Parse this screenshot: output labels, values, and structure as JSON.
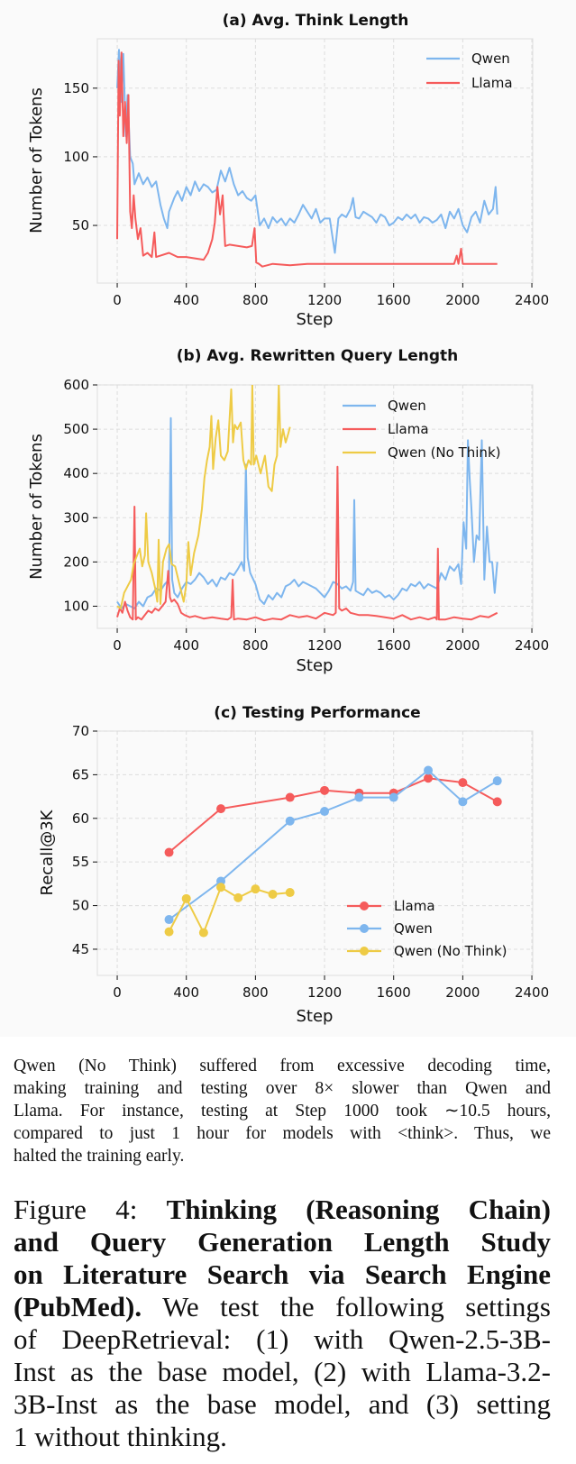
{
  "colors": {
    "qwen": "#7eb6ee",
    "llama": "#f55b5b",
    "qwen_no_think": "#eecb45",
    "grid": "#dddddd",
    "frame": "#e2e2e2"
  },
  "chart_data": [
    {
      "type": "line",
      "title": "(a) Avg. Think Length",
      "xlabel": "Step",
      "ylabel": "Number of Tokens",
      "xlim": [
        -115,
        2405
      ],
      "ylim": [
        8,
        186
      ],
      "xticks": [
        0,
        400,
        800,
        1200,
        1600,
        2000,
        2400
      ],
      "yticks": [
        50,
        100,
        150
      ],
      "grid": true,
      "legend": "top-right",
      "series": [
        {
          "name": "Qwen",
          "color_key": "qwen",
          "x": [
            0,
            10,
            25,
            35,
            50,
            60,
            75,
            90,
            100,
            125,
            150,
            175,
            200,
            225,
            250,
            270,
            290,
            300,
            330,
            350,
            375,
            400,
            425,
            450,
            475,
            500,
            525,
            550,
            575,
            600,
            625,
            650,
            675,
            700,
            725,
            750,
            775,
            800,
            825,
            850,
            875,
            900,
            925,
            950,
            975,
            1000,
            1025,
            1050,
            1075,
            1100,
            1125,
            1150,
            1175,
            1200,
            1230,
            1260,
            1280,
            1300,
            1325,
            1350,
            1365,
            1380,
            1400,
            1425,
            1450,
            1475,
            1500,
            1525,
            1550,
            1575,
            1600,
            1625,
            1650,
            1675,
            1700,
            1725,
            1750,
            1775,
            1800,
            1825,
            1850,
            1875,
            1900,
            1925,
            1950,
            1975,
            2000,
            2025,
            2050,
            2075,
            2100,
            2125,
            2150,
            2175,
            2190,
            2200
          ],
          "y": [
            150,
            178,
            140,
            175,
            115,
            145,
            100,
            95,
            80,
            88,
            80,
            85,
            78,
            82,
            65,
            55,
            48,
            60,
            70,
            75,
            68,
            78,
            72,
            82,
            75,
            80,
            78,
            74,
            76,
            90,
            82,
            92,
            80,
            72,
            75,
            70,
            68,
            72,
            50,
            55,
            48,
            56,
            52,
            55,
            50,
            55,
            52,
            58,
            65,
            60,
            55,
            62,
            52,
            55,
            55,
            30,
            55,
            58,
            56,
            62,
            70,
            56,
            55,
            60,
            58,
            56,
            52,
            58,
            56,
            50,
            52,
            56,
            54,
            58,
            55,
            58,
            52,
            56,
            55,
            52,
            54,
            58,
            48,
            60,
            55,
            62,
            50,
            45,
            56,
            60,
            52,
            68,
            58,
            62,
            78,
            58
          ]
        },
        {
          "name": "Llama",
          "color_key": "llama",
          "x": [
            0,
            8,
            15,
            25,
            35,
            45,
            55,
            65,
            75,
            85,
            95,
            105,
            120,
            135,
            150,
            175,
            200,
            215,
            225,
            250,
            300,
            350,
            400,
            450,
            500,
            525,
            550,
            565,
            580,
            595,
            610,
            625,
            650,
            700,
            750,
            780,
            795,
            805,
            820,
            840,
            870,
            900,
            1000,
            1100,
            1200,
            1400,
            1600,
            1800,
            1950,
            1965,
            1975,
            1990,
            2000,
            2100,
            2200
          ],
          "y": [
            40,
            170,
            130,
            176,
            115,
            140,
            110,
            145,
            60,
            48,
            72,
            55,
            40,
            48,
            28,
            30,
            27,
            45,
            27,
            28,
            30,
            27,
            27,
            26,
            25,
            30,
            40,
            52,
            78,
            58,
            72,
            35,
            36,
            35,
            34,
            35,
            48,
            23,
            22,
            20,
            21,
            22,
            21,
            22,
            22,
            22,
            22,
            22,
            22,
            28,
            22,
            33,
            22,
            22,
            22
          ]
        }
      ]
    },
    {
      "type": "line",
      "title": "(b) Avg. Rewritten Query Length",
      "xlabel": "Step",
      "ylabel": "Number of Tokens",
      "xlim": [
        -115,
        2405
      ],
      "ylim": [
        50,
        600
      ],
      "xticks": [
        0,
        400,
        800,
        1200,
        1600,
        2000,
        2400
      ],
      "yticks": [
        100,
        200,
        300,
        400,
        500,
        600
      ],
      "grid": true,
      "legend": "top-right",
      "series": [
        {
          "name": "Qwen",
          "color_key": "qwen",
          "x": [
            0,
            25,
            50,
            75,
            100,
            125,
            150,
            175,
            200,
            225,
            250,
            275,
            300,
            310,
            318,
            330,
            350,
            375,
            400,
            425,
            450,
            475,
            500,
            525,
            550,
            575,
            600,
            625,
            650,
            675,
            700,
            720,
            735,
            745,
            755,
            770,
            800,
            825,
            850,
            875,
            900,
            925,
            950,
            975,
            1000,
            1025,
            1050,
            1075,
            1100,
            1125,
            1150,
            1175,
            1200,
            1225,
            1250,
            1275,
            1300,
            1325,
            1350,
            1365,
            1372,
            1380,
            1400,
            1425,
            1450,
            1475,
            1500,
            1525,
            1550,
            1575,
            1600,
            1625,
            1650,
            1675,
            1700,
            1725,
            1750,
            1775,
            1800,
            1825,
            1850,
            1875,
            1900,
            1925,
            1950,
            1975,
            1990,
            2005,
            2020,
            2030,
            2040,
            2050,
            2065,
            2080,
            2095,
            2110,
            2125,
            2140,
            2155,
            2170,
            2185,
            2200
          ],
          "y": [
            110,
            95,
            105,
            100,
            95,
            110,
            100,
            120,
            125,
            140,
            135,
            150,
            160,
            525,
            160,
            130,
            120,
            140,
            155,
            150,
            160,
            175,
            165,
            150,
            160,
            145,
            165,
            160,
            175,
            170,
            185,
            200,
            180,
            420,
            210,
            175,
            150,
            115,
            105,
            125,
            115,
            130,
            120,
            145,
            150,
            160,
            145,
            155,
            150,
            145,
            140,
            130,
            120,
            135,
            155,
            150,
            140,
            145,
            135,
            155,
            340,
            135,
            130,
            125,
            140,
            130,
            135,
            130,
            120,
            125,
            115,
            125,
            140,
            135,
            150,
            145,
            155,
            140,
            150,
            145,
            140,
            175,
            160,
            190,
            180,
            195,
            150,
            290,
            230,
            475,
            390,
            320,
            200,
            260,
            250,
            475,
            160,
            280,
            200,
            200,
            130,
            200
          ]
        },
        {
          "name": "Llama",
          "color_key": "llama",
          "x": [
            0,
            15,
            30,
            45,
            60,
            75,
            90,
            100,
            108,
            120,
            140,
            160,
            180,
            200,
            220,
            240,
            260,
            280,
            295,
            305,
            315,
            330,
            350,
            370,
            390,
            420,
            450,
            500,
            550,
            600,
            640,
            660,
            668,
            676,
            700,
            750,
            800,
            850,
            900,
            950,
            1000,
            1050,
            1100,
            1150,
            1200,
            1250,
            1265,
            1275,
            1285,
            1300,
            1325,
            1350,
            1400,
            1450,
            1500,
            1550,
            1600,
            1650,
            1700,
            1750,
            1800,
            1840,
            1850,
            1856,
            1862,
            1900,
            1950,
            2000,
            2050,
            2100,
            2150,
            2200
          ],
          "y": [
            75,
            95,
            85,
            110,
            90,
            75,
            70,
            325,
            70,
            75,
            70,
            80,
            90,
            85,
            95,
            90,
            100,
            110,
            180,
            120,
            110,
            115,
            105,
            85,
            80,
            75,
            78,
            72,
            75,
            72,
            70,
            75,
            160,
            70,
            72,
            70,
            75,
            68,
            72,
            70,
            80,
            75,
            78,
            72,
            85,
            80,
            85,
            415,
            95,
            90,
            95,
            85,
            80,
            80,
            78,
            75,
            72,
            80,
            70,
            75,
            70,
            75,
            70,
            230,
            70,
            70,
            75,
            72,
            70,
            78,
            75,
            85
          ]
        },
        {
          "name": "Qwen (No Think)",
          "color_key": "qwen_no_think",
          "x": [
            0,
            20,
            40,
            60,
            80,
            95,
            110,
            130,
            145,
            160,
            167,
            180,
            200,
            220,
            232,
            240,
            250,
            265,
            285,
            300,
            315,
            335,
            360,
            385,
            400,
            412,
            425,
            445,
            470,
            490,
            505,
            520,
            535,
            545,
            555,
            570,
            585,
            600,
            620,
            640,
            660,
            670,
            680,
            695,
            715,
            730,
            745,
            760,
            775,
            782,
            790,
            805,
            830,
            855,
            875,
            895,
            910,
            925,
            935,
            945,
            960,
            975,
            990,
            1000
          ],
          "y": [
            100,
            95,
            130,
            145,
            160,
            195,
            210,
            230,
            190,
            215,
            310,
            200,
            175,
            140,
            110,
            250,
            105,
            200,
            230,
            240,
            195,
            190,
            150,
            110,
            150,
            245,
            170,
            220,
            260,
            320,
            390,
            430,
            460,
            530,
            410,
            480,
            520,
            440,
            430,
            450,
            590,
            470,
            510,
            500,
            515,
            430,
            410,
            430,
            420,
            600,
            420,
            440,
            400,
            440,
            370,
            360,
            420,
            440,
            600,
            460,
            500,
            470,
            490,
            505
          ]
        }
      ]
    },
    {
      "type": "line",
      "title": "(c) Testing Performance",
      "xlabel": "Step",
      "ylabel": "Recall@3K",
      "xlim": [
        -115,
        2405
      ],
      "ylim": [
        42,
        70
      ],
      "xticks": [
        0,
        400,
        800,
        1200,
        1600,
        2000,
        2400
      ],
      "yticks": [
        45,
        50,
        55,
        60,
        65,
        70
      ],
      "grid": true,
      "legend": "lower-right",
      "markers": true,
      "series": [
        {
          "name": "Llama",
          "color_key": "llama",
          "x": [
            300,
            600,
            1000,
            1200,
            1400,
            1600,
            1800,
            2000,
            2200
          ],
          "y": [
            56.1,
            61.1,
            62.4,
            63.2,
            62.9,
            62.9,
            64.6,
            64.1,
            61.9
          ]
        },
        {
          "name": "Qwen",
          "color_key": "qwen",
          "x": [
            300,
            600,
            1000,
            1200,
            1400,
            1600,
            1800,
            2000,
            2200
          ],
          "y": [
            48.4,
            52.8,
            59.7,
            60.8,
            62.4,
            62.4,
            65.5,
            61.9,
            64.3
          ]
        },
        {
          "name": "Qwen (No Think)",
          "color_key": "qwen_no_think",
          "x": [
            300,
            400,
            500,
            600,
            700,
            800,
            900,
            1000
          ],
          "y": [
            47.0,
            50.8,
            46.9,
            52.1,
            50.9,
            51.9,
            51.3,
            51.5
          ]
        }
      ]
    }
  ],
  "note": {
    "lines": [
      "Qwen (No Think) suffered from excessive decoding time,",
      "making training and testing over 8× slower than Qwen and",
      "Llama. For instance, testing at Step 1000 took ∼10.5 hours,",
      "compared to just 1 hour for models with <think>. Thus, we",
      "halted the training early."
    ]
  },
  "caption": {
    "lines": [
      [
        {
          "text": "Figure 4:  ",
          "bold": false
        },
        {
          "text": "Thinking (Reasoning Chain)",
          "bold": true
        }
      ],
      [
        {
          "text": "and Query Generation Length Study",
          "bold": true
        }
      ],
      [
        {
          "text": "on Literature Search via Search Engine",
          "bold": true
        }
      ],
      [
        {
          "text": "(PubMed).",
          "bold": true
        },
        {
          "text": " We test the following settings",
          "bold": false
        }
      ],
      [
        {
          "text": "of DeepRetrieval:  (1) with Qwen-2.5-3B-",
          "bold": false
        }
      ],
      [
        {
          "text": "Inst as the base model, (2) with Llama-3.2-",
          "bold": false
        }
      ],
      [
        {
          "text": "3B-Inst as the base model, and (3) setting",
          "bold": false
        }
      ],
      [
        {
          "text": "1 without thinking.",
          "bold": false
        }
      ]
    ]
  }
}
